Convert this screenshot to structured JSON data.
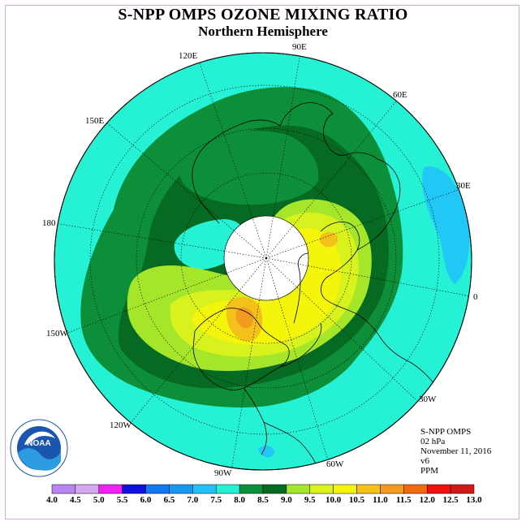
{
  "header": {
    "title": "S-NPP OMPS OZONE MIXING RATIO",
    "subtitle": "Northern Hemisphere"
  },
  "map": {
    "longitude_labels": [
      "90E",
      "60E",
      "30E",
      "0",
      "30W",
      "60W",
      "90W",
      "120W",
      "150W",
      "180",
      "150E",
      "120E"
    ],
    "colors": {
      "ocean_ring": "#25f2d5",
      "range_8_0_8_5": "#0d8f3a",
      "range_8_5_9_0": "#066a23",
      "range_9_0_9_5": "#a6e62a",
      "range_9_5_10_0": "#d7f21c",
      "range_10_0_10_5": "#f5f50c",
      "range_10_5_11_0": "#f4c01a",
      "range_11_0_11_5": "#f29b1e",
      "range_7_5_8_0": "#22c8f5",
      "polar_night": "#ffffff"
    }
  },
  "info": {
    "lines": [
      "S-NPP OMPS",
      "02 hPa",
      "November 11, 2016",
      "v6",
      "PPM"
    ]
  },
  "logo": {
    "text": "NOAA",
    "ring_text": "NATIONAL OCEANIC AND ATMOSPHERIC ADMINISTRATION · U.S. DEPARTMENT OF COMMERCE"
  },
  "colorbar": {
    "labels": [
      "4.0",
      "4.5",
      "5.0",
      "5.5",
      "6.0",
      "6.5",
      "7.0",
      "7.5",
      "8.0",
      "8.5",
      "9.0",
      "9.5",
      "10.0",
      "10.5",
      "11.0",
      "11.5",
      "12.0",
      "12.5",
      "13.0"
    ],
    "colors": [
      "#b886f0",
      "#d6a8f0",
      "#f020f0",
      "#1010e0",
      "#1478f0",
      "#1a98f0",
      "#22c0f5",
      "#25f2d5",
      "#0d8f3a",
      "#066a23",
      "#a6e62a",
      "#d7f21c",
      "#f5f50c",
      "#f4c01a",
      "#f29b1e",
      "#f06a12",
      "#f01010",
      "#d01a1a",
      "#8a5a3a"
    ]
  }
}
